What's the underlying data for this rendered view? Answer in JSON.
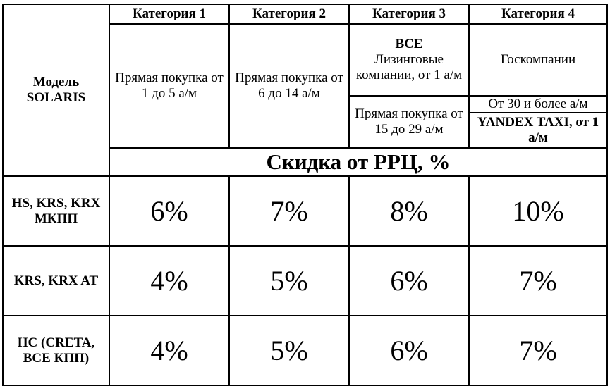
{
  "header": {
    "model_label": "Модель SOLARIS",
    "categories": [
      "Категория 1",
      "Категория 2",
      "Категория 3",
      "Категория 4"
    ]
  },
  "conditions": {
    "cat1": "Прямая покупка от 1 до 5 а/м",
    "cat2": "Прямая покупка от 6 до 14 а/м",
    "cat3_all_title": "ВСЕ",
    "cat3_leasing": "Лизинговые компании, от 1 а/м",
    "cat3_direct": "Прямая покупка от 15 до 29 а/м",
    "cat4_gov": "Госкомпании",
    "cat4_volume": "От 30 и более а/м",
    "cat4_yandex": "YANDEX TAXI, от 1 а/м"
  },
  "discount_title": "Скидка от РРЦ, %",
  "rows": [
    {
      "label": "HS, KRS, KRX МКПП",
      "values": [
        "6%",
        "7%",
        "8%",
        "10%"
      ]
    },
    {
      "label": "KRS, KRX AT",
      "values": [
        "4%",
        "5%",
        "6%",
        "7%"
      ]
    },
    {
      "label": "HC (CRETA, ВСЕ КПП)",
      "values": [
        "4%",
        "5%",
        "6%",
        "7%"
      ]
    }
  ]
}
